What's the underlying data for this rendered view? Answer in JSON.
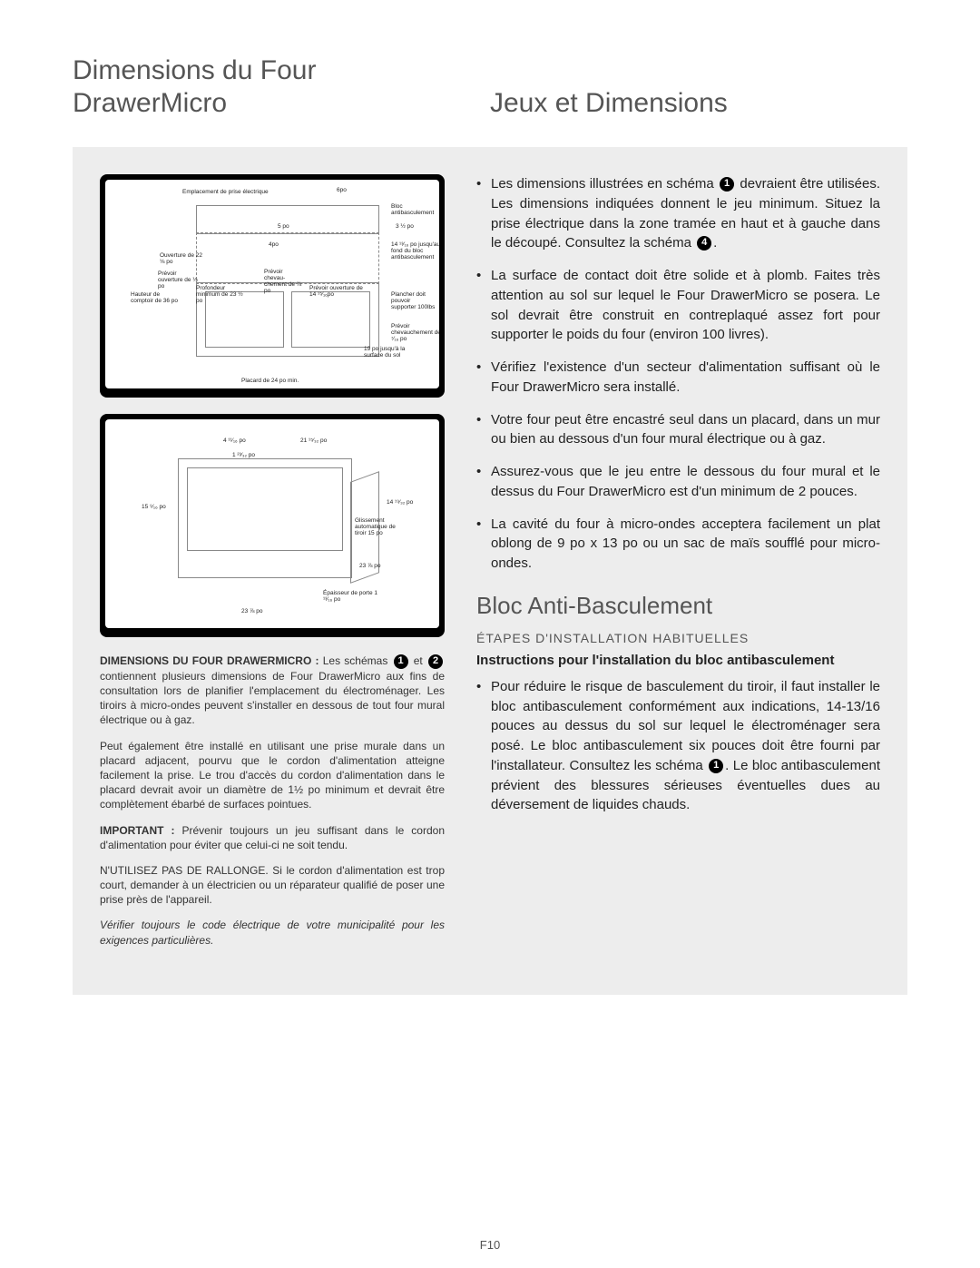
{
  "page_number": "F10",
  "headings": {
    "left_title": "Dimensions du Four DrawerMicro",
    "right_title": "Jeux et Dimensions",
    "anti_tip": "Bloc Anti-Basculement",
    "steps": "ÉTAPES D'INSTALLATION HABITUELLES",
    "instr": "Instructions pour l'installation du bloc antibasculement"
  },
  "schemas": {
    "label": "schéma",
    "s1": {
      "num": "1",
      "labels": {
        "outlet": "Emplacement de prise électrique",
        "six": "6po",
        "antitip": "Bloc antibasculement",
        "five": "5 po",
        "three_half": "3 ½ po",
        "four": "4po",
        "opening": "Ouverture de 22 ⅛ po",
        "open_provide": "Prévoir ouverture de ⅛ po",
        "depth": "Profondeur minimum de 23 ½ po",
        "counter_h": "Hauteur de comptoir de 36 po",
        "overlap1": "Prévoir chevau-chement de ⅞ po",
        "open14": "Prévoir ouverture de 14 ¹⁵⁄₁₆po",
        "to_floor": "14 ¹³⁄₁₆ po jusqu'au fond du bloc antibasculement",
        "floor": "Plancher doit pouvoir supporter 100lbs",
        "overlap2": "Prévoir chevauchement de ⁷⁄₁₆ po",
        "nineteen": "19 po jusqu'à la surface du sol",
        "cabinet": "Placard de 24 po min."
      }
    },
    "s2": {
      "num": "2",
      "labels": {
        "w_top": "4 ¹¹⁄₁₆ po",
        "w_21": "21 ¹⁵⁄₃₂ po",
        "h_1": "1 ²³⁄₃₂ po",
        "h_15": "15 ⁹⁄₁₆ po",
        "d_14": "14 ¹⁹⁄₃₂ po",
        "slide": "Glissement automatique de tiroir 15 po",
        "w_23b": "23 ⅞ po",
        "w_23a": "23 ⅞ po",
        "door": "Épaisseur de porte 1 ¹³⁄₁₆ po"
      }
    }
  },
  "captions": {
    "c1_prefix": "DIMENSIONS DU FOUR DRAWERMICRO :",
    "c1_body": " Les schémas ❶ et ❷ contiennent plusieurs dimensions de Four DrawerMicro aux fins de consultation lors de planifier l'emplacement du électroménager. Les tiroirs à micro-ondes peuvent s'installer en dessous de tout four mural électrique ou à gaz.",
    "c2": "Peut également être installé en utilisant une prise murale dans un placard adjacent, pourvu que le cordon d'alimentation atteigne facilement la prise. Le trou d'accès du cordon d'alimentation dans le placard devrait avoir un diamètre de 1½ po minimum et devrait être complètement ébarbé de surfaces pointues.",
    "c3_prefix": "IMPORTANT :",
    "c3_body": " Prévenir toujours un jeu suffisant dans le cordon d'alimentation pour éviter que celui-ci ne soit tendu.",
    "c4": "N'UTILISEZ PAS DE RALLONGE.  Si le cordon d'alimentation est trop court, demander à un électricien ou un réparateur qualifié de poser une prise près de l'appareil.",
    "c5": "Vérifier toujours le code électrique de votre municipalité pour les exigences particulières."
  },
  "bullets_right": [
    "Les dimensions illustrées en schéma ❶ devraient être utilisées. Les dimensions indiquées donnent le jeu minimum. Situez la prise électrique dans la zone tramée en haut et à gauche dans le découpé. Consultez la schéma ❹.",
    "La surface de contact doit être solide et à plomb. Faites très attention au sol sur lequel le Four DrawerMicro se posera. Le sol devrait être construit en contreplaqué assez fort pour supporter le poids du four (environ 100 livres).",
    "Vérifiez l'existence d'un secteur d'alimentation suffisant où le Four DrawerMicro sera installé.",
    "Votre four peut être encastré seul dans un placard, dans un mur ou bien au dessous d'un four mural électrique ou à gaz.",
    "Assurez-vous que le jeu entre le dessous du four mural et le dessus du Four DrawerMicro est d'un minimum de 2 pouces.",
    "La cavité du four à micro-ondes acceptera facilement un plat oblong de 9 po x 13 po ou un sac de maïs soufflé pour micro-ondes."
  ],
  "antitip_bullet": "Pour réduire le risque de basculement du tiroir, il faut installer le bloc antibasculement conformément aux indications, 14-13/16 pouces au dessus du sol sur lequel le électroménager sera posé. Le bloc antibasculement six pouces doit être fourni par l'installateur. Consultez les schéma ❶. Le bloc antibasculement prévient des blessures sérieuses éventuelles dues au déversement de liquides chauds.",
  "colors": {
    "page_bg": "#ffffff",
    "panel_bg": "#ededed",
    "heading_color": "#555555",
    "text_color": "#222222",
    "schema_frame": "#000000"
  }
}
